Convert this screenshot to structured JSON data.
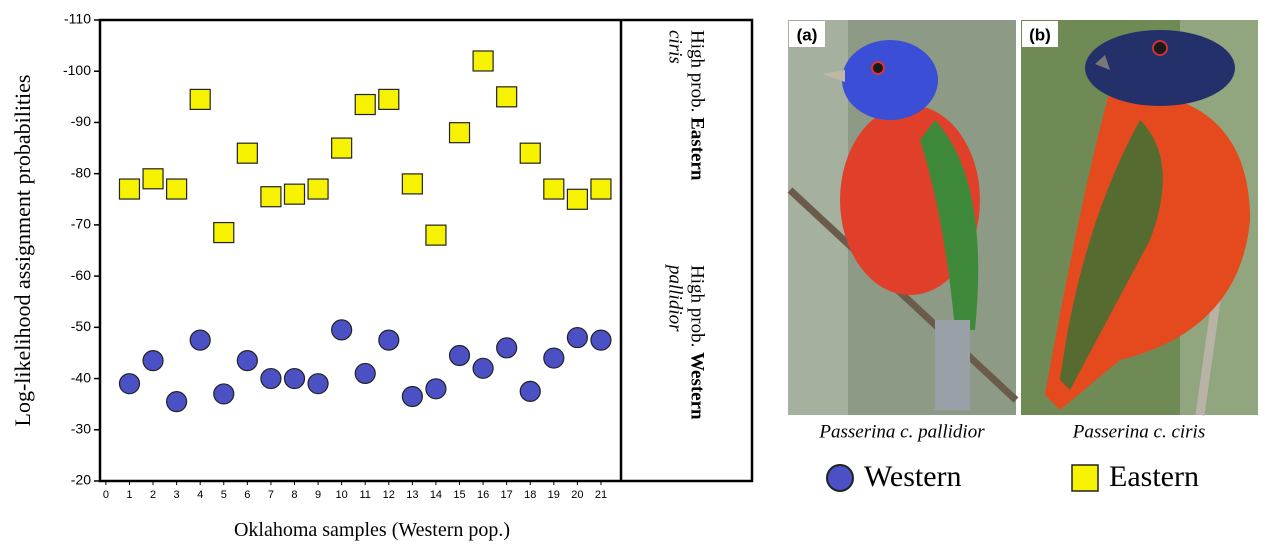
{
  "chart_data": {
    "type": "scatter",
    "ylabel": "Log-likelihood assignment probabilities",
    "xlabel": "Oklahoma samples (Western pop.)",
    "x": [
      1,
      2,
      3,
      4,
      5,
      6,
      7,
      8,
      9,
      10,
      11,
      12,
      13,
      14,
      15,
      16,
      17,
      18,
      19,
      20,
      21
    ],
    "series": [
      {
        "name": "Eastern",
        "marker": "square",
        "color": "#f7f200",
        "values": [
          -77,
          -79,
          -77,
          -94.5,
          -68.5,
          -84,
          -75.5,
          -76,
          -77,
          -85,
          -93.5,
          -94.5,
          -78,
          -68,
          -88,
          -102,
          -95,
          -84,
          -77,
          -75,
          -77
        ]
      },
      {
        "name": "Western",
        "marker": "circle",
        "color": "#4b50c4",
        "values": [
          -39,
          -43.5,
          -35.5,
          -47.5,
          -37,
          -43.5,
          -40,
          -40,
          -39,
          -49.5,
          -41,
          -47.5,
          -36.5,
          -38,
          -44.5,
          -42,
          -46,
          -37.5,
          -44,
          -48,
          -47.5
        ]
      }
    ],
    "xlim": [
      -0.25,
      21.85
    ],
    "xticks": [
      0,
      1,
      2,
      3,
      4,
      5,
      6,
      7,
      8,
      9,
      10,
      11,
      12,
      13,
      14,
      15,
      16,
      17,
      18,
      19,
      20,
      21
    ],
    "ylim": [
      -20,
      -110
    ],
    "yticks": [
      -110,
      -100,
      -90,
      -80,
      -70,
      -60,
      -50,
      -40,
      -30,
      -20
    ],
    "region_labels": [
      {
        "prefix": "High prob.",
        "bold": "Eastern",
        "italic": "ciris"
      },
      {
        "prefix": "High prob.",
        "bold": "Western",
        "italic": "pallidior"
      }
    ]
  },
  "photos": [
    {
      "panel": "(a)",
      "caption": "Passerina c. pallidior"
    },
    {
      "panel": "(b)",
      "caption": "Passerina c. ciris"
    }
  ]
}
